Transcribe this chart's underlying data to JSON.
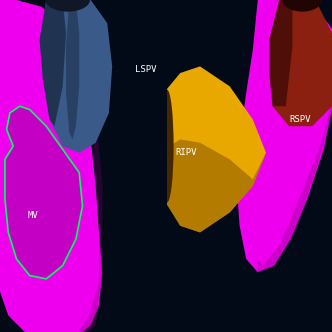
{
  "bg_color": "#020a18",
  "fig_width": 3.32,
  "fig_height": 3.32,
  "dpi": 100,
  "left_panel": {
    "la_color": "#ee00ee",
    "la_mid": "#cc00cc",
    "la_dark": "#7a006a",
    "lspv_color": "#3a5a8a",
    "lspv_mid": "#2a4070",
    "lspv_dark": "#182840",
    "lspv_inner": "#101828",
    "mv_outline": "#00ff55",
    "mv_fill": "#bb00bb",
    "label_lspv": "LSPV",
    "label_mv": "MV",
    "label_color": "#ffffff"
  },
  "right_panel": {
    "la_color": "#ee00ee",
    "la_mid": "#cc00cc",
    "la_dark": "#7a006a",
    "rspv_color": "#8b2010",
    "rspv_mid": "#6a1808",
    "rspv_dark": "#400a05",
    "rspv_inner": "#200503",
    "ripv_color": "#e8a800",
    "ripv_mid": "#c88800",
    "ripv_dark": "#885800",
    "ripv_inner": "#442800",
    "label_rspv": "RSPV",
    "label_ripv": "RIPV",
    "label_color": "#ffffff"
  }
}
